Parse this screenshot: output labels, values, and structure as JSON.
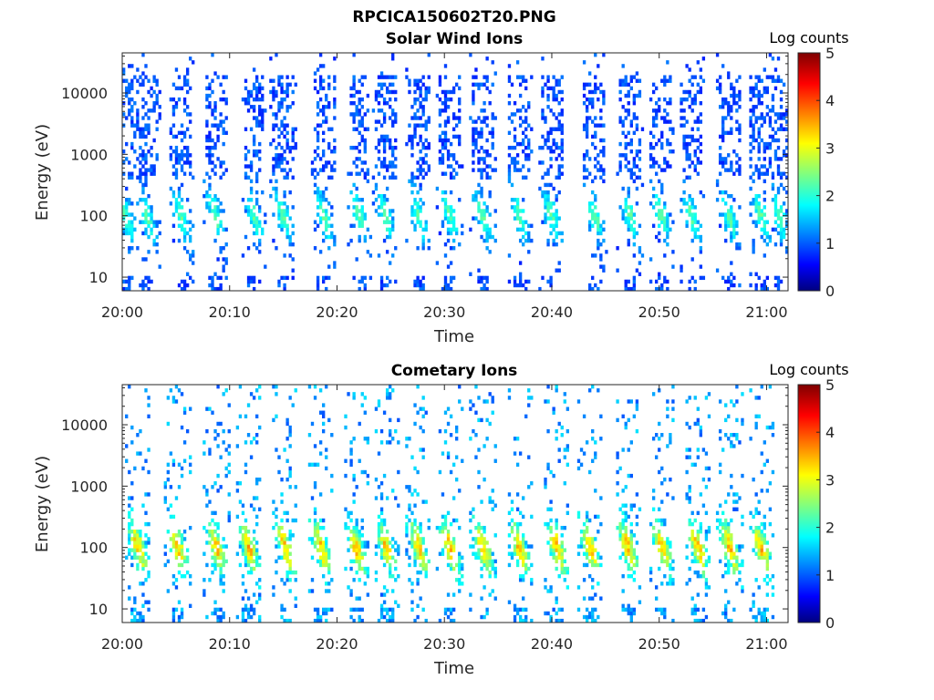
{
  "figure_title": "RPCICA150602T20.PNG",
  "chart_data": [
    {
      "type": "heatmap",
      "title": "Solar Wind Ions",
      "xlabel": "Time",
      "ylabel": "Energy (eV)",
      "x_ticks": [
        "20:00",
        "20:10",
        "20:20",
        "20:30",
        "20:40",
        "20:50",
        "21:00"
      ],
      "xlim": [
        "20:00",
        "21:02"
      ],
      "y_scale": "log",
      "y_ticks": [
        "10",
        "100",
        "1000",
        "10000"
      ],
      "ylim": [
        6,
        45000
      ],
      "colorbar": {
        "label": "Log counts",
        "ticks": [
          "0",
          "1",
          "2",
          "3",
          "4",
          "5"
        ],
        "range": [
          0,
          5
        ],
        "colormap": "jet"
      },
      "grid": false,
      "pattern": {
        "sweep_minutes": [
          0.3,
          2.3,
          5.5,
          8.7,
          12.3,
          15.0,
          18.8,
          22.1,
          24.5,
          27.6,
          30.5,
          33.6,
          37.0,
          40.0,
          44.0,
          47.3,
          50.2,
          53.0,
          56.5,
          59.5,
          61.2
        ],
        "description": "quasi-periodic energy-time dispersed bursts"
      }
    },
    {
      "type": "heatmap",
      "title": "Cometary Ions",
      "xlabel": "Time",
      "ylabel": "Energy (eV)",
      "x_ticks": [
        "20:00",
        "20:10",
        "20:20",
        "20:30",
        "20:40",
        "20:50",
        "21:00"
      ],
      "xlim": [
        "20:00",
        "21:02"
      ],
      "y_scale": "log",
      "y_ticks": [
        "10",
        "100",
        "1000",
        "10000"
      ],
      "ylim": [
        6,
        45000
      ],
      "colorbar": {
        "label": "Log counts",
        "ticks": [
          "0",
          "1",
          "2",
          "3",
          "4",
          "5"
        ],
        "range": [
          0,
          5
        ],
        "colormap": "jet"
      },
      "grid": false,
      "pattern": {
        "sweep_minutes": [
          1.5,
          5.2,
          8.8,
          11.8,
          15.2,
          18.5,
          21.8,
          24.6,
          27.6,
          30.5,
          33.6,
          37.0,
          40.5,
          43.6,
          47.1,
          50.3,
          53.6,
          56.6,
          59.5
        ],
        "description": "quasi-periodic energy-time dispersed bursts"
      }
    }
  ]
}
